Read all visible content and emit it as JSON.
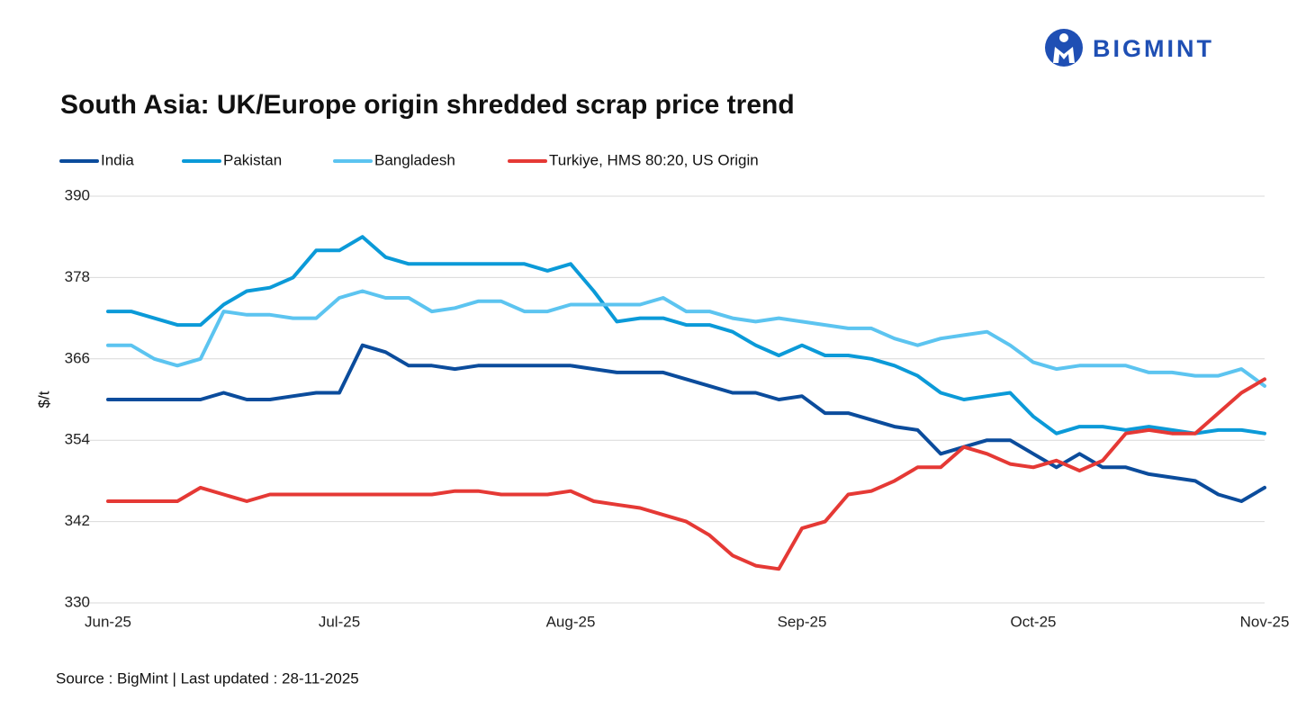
{
  "brand": "BIGMINT",
  "chart_data": {
    "type": "line",
    "title": "South Asia: UK/Europe origin shredded scrap price trend",
    "ylabel": "$/t",
    "source": "Source : BigMint | Last updated : 28-11-2025",
    "x": [
      0,
      0.1,
      0.2,
      0.3,
      0.4,
      0.5,
      0.6,
      0.7,
      0.8,
      0.9,
      1.0,
      1.1,
      1.2,
      1.3,
      1.4,
      1.5,
      1.6,
      1.7,
      1.8,
      1.9,
      2.0,
      2.1,
      2.2,
      2.3,
      2.4,
      2.5,
      2.6,
      2.7,
      2.8,
      2.9,
      3.0,
      3.1,
      3.2,
      3.3,
      3.4,
      3.5,
      3.6,
      3.7,
      3.8,
      3.9,
      4.0,
      4.1,
      4.2,
      4.3,
      4.4,
      4.5,
      4.6,
      4.7,
      4.8,
      4.9,
      5.0
    ],
    "xlim": [
      0,
      5
    ],
    "xticks": [
      {
        "value": 0,
        "label": "Jun-25"
      },
      {
        "value": 1,
        "label": "Jul-25"
      },
      {
        "value": 2,
        "label": "Aug-25"
      },
      {
        "value": 3,
        "label": "Sep-25"
      },
      {
        "value": 4,
        "label": "Oct-25"
      },
      {
        "value": 5,
        "label": "Nov-25"
      }
    ],
    "ylim": [
      330,
      390
    ],
    "yticks": [
      330,
      342,
      354,
      366,
      378,
      390
    ],
    "grid": true,
    "legend": "top",
    "series": [
      {
        "name": "India",
        "color": "#0b4c9c",
        "values": [
          360,
          360,
          360,
          360,
          360,
          361,
          360,
          360,
          360.5,
          361,
          361,
          368,
          367,
          365,
          365,
          364.5,
          365,
          365,
          365,
          365,
          365,
          364.5,
          364,
          364,
          364,
          363,
          362,
          361,
          361,
          360,
          360.5,
          358,
          358,
          357,
          356,
          355.5,
          352,
          353,
          354,
          354,
          352,
          350,
          352,
          350,
          350,
          349,
          348.5,
          348,
          346,
          345,
          347
        ]
      },
      {
        "name": "Pakistan",
        "color": "#0b9ad8",
        "values": [
          373,
          373,
          372,
          371,
          371,
          374,
          376,
          376.5,
          378,
          382,
          382,
          384,
          381,
          380,
          380,
          380,
          380,
          380,
          380,
          379,
          380,
          376,
          371.5,
          372,
          372,
          371,
          371,
          370,
          368,
          366.5,
          368,
          366.5,
          366.5,
          366,
          365,
          363.5,
          361,
          360,
          360.5,
          361,
          357.5,
          355,
          356,
          356,
          355.5,
          356,
          355.5,
          355,
          355.5,
          355.5,
          355
        ]
      },
      {
        "name": "Bangladesh",
        "color": "#5cc4f0",
        "values": [
          368,
          368,
          366,
          365,
          366,
          373,
          372.5,
          372.5,
          372,
          372,
          375,
          376,
          375,
          375,
          373,
          373.5,
          374.5,
          374.5,
          373,
          373,
          374,
          374,
          374,
          374,
          375,
          373,
          373,
          372,
          371.5,
          372,
          371.5,
          371,
          370.5,
          370.5,
          369,
          368,
          369,
          369.5,
          370,
          368,
          365.5,
          364.5,
          365,
          365,
          365,
          364,
          364,
          363.5,
          363.5,
          364.5,
          362
        ]
      },
      {
        "name": "Turkiye, HMS 80:20, US Origin",
        "color": "#e53935",
        "values": [
          345,
          345,
          345,
          345,
          347,
          346,
          345,
          346,
          346,
          346,
          346,
          346,
          346,
          346,
          346,
          346.5,
          346.5,
          346,
          346,
          346,
          346.5,
          345,
          344.5,
          344,
          343,
          342,
          340,
          337,
          335.5,
          335,
          341,
          342,
          346,
          346.5,
          348,
          350,
          350,
          353,
          352,
          350.5,
          350,
          351,
          349.5,
          351,
          355,
          355.5,
          355,
          355,
          358,
          361,
          363
        ]
      }
    ]
  }
}
